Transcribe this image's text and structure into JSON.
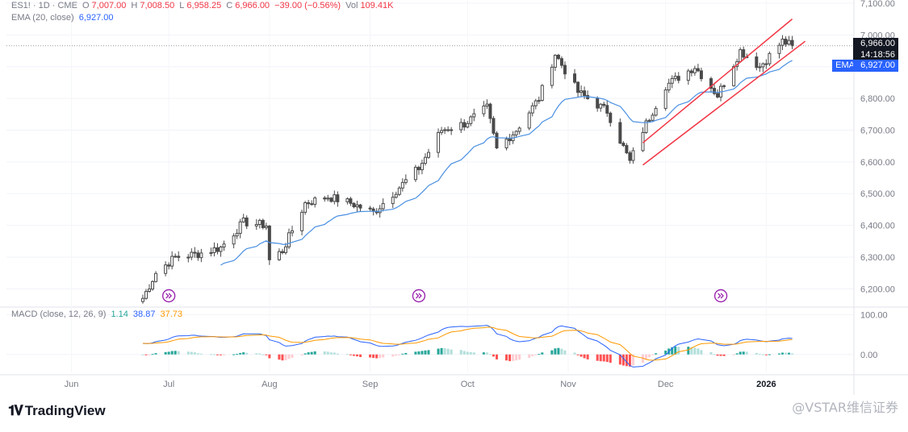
{
  "header": {
    "symbol": "ES1! · 1D · CME",
    "open_label": "O",
    "open": "7,007.00",
    "high_label": "H",
    "high": "7,008.50",
    "low_label": "L",
    "low": "6,958.25",
    "close_label": "C",
    "close": "6,966.00",
    "change": "−39.00 (−0.56%)",
    "vol_label": "Vol",
    "vol": "109.41K"
  },
  "ema_legend": {
    "label": "EMA (20, close)",
    "value": "6,927.00"
  },
  "macd_legend": {
    "label": "MACD (close, 12, 26, 9)",
    "hist": "1.14",
    "macd": "38.87",
    "signal": "37.73"
  },
  "price_tags": {
    "last": "6,966.00",
    "countdown": "14:18:56",
    "ema_label": "EMA",
    "ema": "6,927.00"
  },
  "colors": {
    "up": "#26a69a",
    "down": "#f23645",
    "candle": "#4a4a4a",
    "ema": "#4a90e2",
    "macd": "#2962ff",
    "signal": "#ff9800",
    "wedge": "#f23645",
    "event": "#9c27b0"
  },
  "footer": {
    "logo_text": "TradingView",
    "watermark": "@VSTAR维信证券"
  },
  "chart_data": {
    "type": "candlestick",
    "price_axis": {
      "ticks": [
        "7,100.00",
        "7,000.00",
        "6,900.00",
        "6,800.00",
        "6,700.00",
        "6,600.00",
        "6,500.00",
        "6,400.00",
        "6,300.00",
        "6,200.00"
      ],
      "range": [
        6150,
        7110
      ]
    },
    "macd_axis": {
      "ticks": [
        "100.00",
        "0.00"
      ],
      "range": [
        -45,
        115
      ]
    },
    "time_axis": [
      "Jun",
      "Jul",
      "Aug",
      "Sep",
      "Oct",
      "Nov",
      "Dec",
      "2026"
    ],
    "price_series": [
      [
        "2025-06-23",
        6170
      ],
      [
        "2025-06-27",
        6250
      ],
      [
        "2025-07-03",
        6300
      ],
      [
        "2025-07-10",
        6310
      ],
      [
        "2025-07-17",
        6330
      ],
      [
        "2025-07-24",
        6410
      ],
      [
        "2025-07-31",
        6400
      ],
      [
        "2025-08-01",
        6290
      ],
      [
        "2025-08-05",
        6320
      ],
      [
        "2025-08-12",
        6470
      ],
      [
        "2025-08-19",
        6490
      ],
      [
        "2025-08-26",
        6470
      ],
      [
        "2025-09-02",
        6440
      ],
      [
        "2025-09-09",
        6510
      ],
      [
        "2025-09-16",
        6580
      ],
      [
        "2025-09-23",
        6700
      ],
      [
        "2025-09-30",
        6720
      ],
      [
        "2025-10-07",
        6770
      ],
      [
        "2025-10-10",
        6640
      ],
      [
        "2025-10-16",
        6700
      ],
      [
        "2025-10-23",
        6800
      ],
      [
        "2025-10-28",
        6940
      ],
      [
        "2025-11-04",
        6820
      ],
      [
        "2025-11-13",
        6760
      ],
      [
        "2025-11-20",
        6600
      ],
      [
        "2025-11-24",
        6700
      ],
      [
        "2025-12-01",
        6840
      ],
      [
        "2025-12-10",
        6900
      ],
      [
        "2025-12-17",
        6810
      ],
      [
        "2025-12-24",
        6950
      ],
      [
        "2025-12-30",
        6900
      ],
      [
        "2026-01-06",
        6980
      ],
      [
        "2026-01-09",
        6966
      ]
    ],
    "ema": {
      "name": "EMA (20, close)",
      "last": 6927.0
    },
    "wedge_lines": [
      {
        "from": [
          "2025-11-24",
          6660
        ],
        "to": [
          "2026-01-09",
          7050
        ]
      },
      {
        "from": [
          "2025-11-24",
          6590
        ],
        "to": [
          "2026-01-13",
          6980
        ]
      }
    ],
    "event_markers": [
      "2025-07-01",
      "2025-09-16",
      "2025-12-18"
    ]
  }
}
